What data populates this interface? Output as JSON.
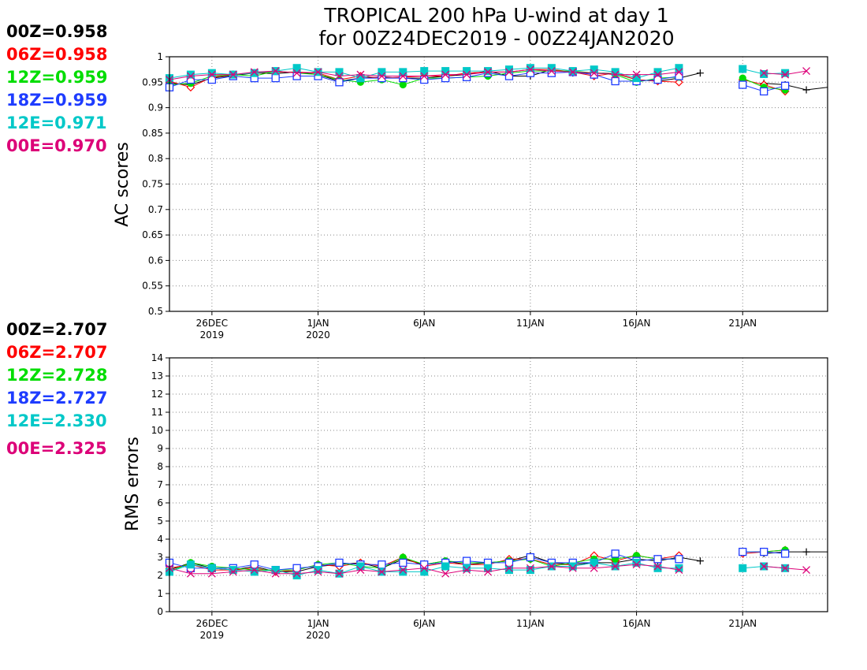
{
  "title_line1": "TROPICAL 200 hPa U-wind at day 1",
  "title_line2": "for 00Z24DEC2019 - 00Z24JAN2020",
  "colors": {
    "00Z": "#000000",
    "06Z": "#ff0000",
    "12Z": "#00dd00",
    "18Z": "#1e3cff",
    "12E": "#00c8c8",
    "00E": "#dc0078"
  },
  "top_legend": [
    {
      "key": "00Z",
      "text": "00Z=0.958"
    },
    {
      "key": "06Z",
      "text": "06Z=0.958"
    },
    {
      "key": "12Z",
      "text": "12Z=0.959"
    },
    {
      "key": "18Z",
      "text": "18Z=0.959"
    },
    {
      "key": "12E",
      "text": "12E=0.971"
    },
    {
      "key": "00E",
      "text": "00E=0.970"
    }
  ],
  "bottom_legend": [
    {
      "key": "00Z",
      "text": "00Z=2.707"
    },
    {
      "key": "06Z",
      "text": "06Z=2.707"
    },
    {
      "key": "12Z",
      "text": "12Z=2.728"
    },
    {
      "key": "18Z",
      "text": "18Z=2.727"
    },
    {
      "key": "12E",
      "text": "12E=2.330"
    },
    {
      "key": "00E",
      "text": "00E=2.325"
    }
  ],
  "x_ticks": [
    {
      "day": 26,
      "line1": "26DEC",
      "line2": "2019"
    },
    {
      "day": 31,
      "line1": "1JAN",
      "line2": "2020"
    },
    {
      "day": 36,
      "line1": "6JAN",
      "line2": ""
    },
    {
      "day": 41,
      "line1": "11JAN",
      "line2": ""
    },
    {
      "day": 46,
      "line1": "16JAN",
      "line2": ""
    },
    {
      "day": 51,
      "line1": "21JAN",
      "line2": ""
    }
  ],
  "chart_data": [
    {
      "type": "line",
      "ylabel": "AC scores",
      "ylim": [
        0.5,
        1.0
      ],
      "xlim": [
        24,
        55
      ],
      "y_ticks": [
        "0.5",
        "0.55",
        "0.6",
        "0.65",
        "0.7",
        "0.75",
        "0.8",
        "0.85",
        "0.9",
        "0.95",
        "1"
      ],
      "grid": true,
      "x": [
        24,
        25,
        26,
        27,
        28,
        29,
        30,
        31,
        32,
        33,
        34,
        35,
        36,
        37,
        38,
        39,
        40,
        41,
        42,
        43,
        44,
        45,
        46,
        47,
        48,
        49,
        50,
        51,
        52,
        53,
        54,
        55
      ],
      "series": [
        {
          "name": "00Z",
          "marker": "plus",
          "values": [
            0.948,
            0.945,
            0.958,
            0.963,
            0.968,
            0.967,
            0.97,
            0.965,
            0.952,
            0.958,
            0.96,
            0.958,
            0.958,
            0.962,
            0.965,
            0.972,
            0.962,
            0.962,
            0.975,
            0.968,
            0.968,
            0.967,
            0.955,
            0.952,
            0.958,
            0.968,
            null,
            null,
            0.948,
            0.945,
            0.935,
            0.94
          ]
        },
        {
          "name": "06Z",
          "marker": "diamond",
          "values": [
            0.952,
            0.94,
            0.96,
            0.965,
            0.968,
            0.97,
            0.97,
            0.968,
            0.955,
            0.962,
            0.958,
            0.96,
            0.962,
            0.962,
            0.968,
            0.97,
            0.97,
            0.975,
            0.975,
            0.97,
            0.962,
            0.968,
            0.955,
            0.952,
            0.95,
            null,
            null,
            0.955,
            0.945,
            0.932,
            null,
            null
          ]
        },
        {
          "name": "12Z",
          "marker": "circle",
          "values": [
            0.945,
            0.948,
            0.962,
            0.965,
            0.962,
            0.972,
            0.968,
            0.965,
            0.955,
            0.95,
            0.955,
            0.945,
            0.958,
            0.958,
            0.96,
            0.962,
            0.968,
            0.972,
            0.972,
            0.972,
            0.968,
            0.965,
            0.95,
            0.958,
            0.96,
            null,
            null,
            0.958,
            0.94,
            0.935,
            null,
            null
          ]
        },
        {
          "name": "18Z",
          "marker": "square",
          "values": [
            0.94,
            0.955,
            0.955,
            0.962,
            0.958,
            0.958,
            0.962,
            0.962,
            0.95,
            0.958,
            0.958,
            0.958,
            0.955,
            0.958,
            0.96,
            0.968,
            0.962,
            0.968,
            0.968,
            0.97,
            0.965,
            0.952,
            0.952,
            0.955,
            0.962,
            null,
            null,
            0.945,
            0.932,
            0.943,
            null,
            null
          ]
        },
        {
          "name": "12E",
          "marker": "filledsquare",
          "values": [
            0.958,
            0.965,
            0.968,
            0.965,
            0.968,
            0.972,
            0.978,
            0.97,
            0.97,
            0.958,
            0.97,
            0.97,
            0.972,
            0.972,
            0.972,
            0.972,
            0.975,
            0.978,
            0.978,
            0.972,
            0.975,
            0.97,
            0.958,
            0.97,
            0.978,
            null,
            null,
            0.976,
            0.966,
            0.968,
            null,
            null
          ]
        },
        {
          "name": "00E",
          "marker": "x",
          "values": [
            0.955,
            0.962,
            0.965,
            0.965,
            0.97,
            0.972,
            0.968,
            0.97,
            0.962,
            0.965,
            0.962,
            0.962,
            0.962,
            0.965,
            0.965,
            0.97,
            0.97,
            0.975,
            0.972,
            0.97,
            0.968,
            0.965,
            0.965,
            0.965,
            0.97,
            null,
            null,
            null,
            0.968,
            0.965,
            0.972,
            null
          ]
        }
      ]
    },
    {
      "type": "line",
      "ylabel": "RMS errors",
      "ylim": [
        0,
        14
      ],
      "xlim": [
        24,
        55
      ],
      "y_ticks": [
        "0",
        "1",
        "2",
        "3",
        "4",
        "5",
        "6",
        "7",
        "8",
        "9",
        "10",
        "11",
        "12",
        "13",
        "14"
      ],
      "grid": true,
      "x": [
        24,
        25,
        26,
        27,
        28,
        29,
        30,
        31,
        32,
        33,
        34,
        35,
        36,
        37,
        38,
        39,
        40,
        41,
        42,
        43,
        44,
        45,
        46,
        47,
        48,
        49,
        50,
        51,
        52,
        53,
        54,
        55
      ],
      "series": [
        {
          "name": "00Z",
          "marker": "plus",
          "values": [
            2.3,
            2.7,
            2.4,
            2.3,
            2.5,
            2.2,
            2.2,
            2.5,
            2.6,
            2.7,
            2.4,
            2.9,
            2.6,
            2.8,
            2.6,
            2.7,
            2.8,
            3.1,
            2.7,
            2.6,
            2.7,
            2.7,
            2.9,
            2.8,
            3.0,
            2.8,
            null,
            null,
            3.2,
            3.3,
            3.3,
            3.3
          ]
        },
        {
          "name": "06Z",
          "marker": "diamond",
          "values": [
            2.4,
            2.6,
            2.3,
            2.3,
            2.4,
            2.2,
            2.3,
            2.6,
            2.5,
            2.7,
            2.5,
            3.0,
            2.5,
            2.7,
            2.6,
            2.6,
            2.9,
            2.9,
            2.6,
            2.6,
            3.1,
            2.8,
            3.1,
            2.9,
            3.1,
            null,
            null,
            3.2,
            3.3,
            3.4,
            null,
            null
          ]
        },
        {
          "name": "12Z",
          "marker": "circle",
          "values": [
            2.2,
            2.7,
            2.5,
            2.4,
            2.3,
            2.3,
            2.3,
            2.6,
            2.7,
            2.5,
            2.4,
            3.0,
            2.6,
            2.8,
            2.7,
            2.7,
            2.8,
            2.9,
            2.5,
            2.7,
            2.9,
            2.9,
            3.1,
            2.9,
            2.9,
            null,
            null,
            3.3,
            3.3,
            3.4,
            null,
            null
          ]
        },
        {
          "name": "18Z",
          "marker": "square",
          "values": [
            2.7,
            2.4,
            2.4,
            2.4,
            2.6,
            2.3,
            2.4,
            2.5,
            2.7,
            2.6,
            2.6,
            2.7,
            2.6,
            2.7,
            2.8,
            2.7,
            2.7,
            3.0,
            2.7,
            2.7,
            2.7,
            3.2,
            2.8,
            2.9,
            2.9,
            null,
            null,
            3.3,
            3.3,
            3.2,
            null,
            null
          ]
        },
        {
          "name": "12E",
          "marker": "filledsquare",
          "values": [
            2.2,
            2.6,
            2.4,
            2.3,
            2.2,
            2.3,
            2.0,
            2.3,
            2.1,
            2.5,
            2.2,
            2.2,
            2.2,
            2.5,
            2.4,
            2.4,
            2.3,
            2.3,
            2.5,
            2.5,
            2.7,
            2.5,
            2.7,
            2.4,
            2.4,
            null,
            null,
            2.4,
            2.5,
            2.4,
            null,
            null
          ]
        },
        {
          "name": "00E",
          "marker": "x",
          "values": [
            2.4,
            2.1,
            2.1,
            2.2,
            2.3,
            2.1,
            2.1,
            2.2,
            2.1,
            2.3,
            2.2,
            2.3,
            2.4,
            2.1,
            2.3,
            2.2,
            2.4,
            2.4,
            2.5,
            2.4,
            2.4,
            2.5,
            2.6,
            2.5,
            2.3,
            null,
            null,
            null,
            2.5,
            2.4,
            2.3,
            null
          ]
        }
      ]
    }
  ]
}
